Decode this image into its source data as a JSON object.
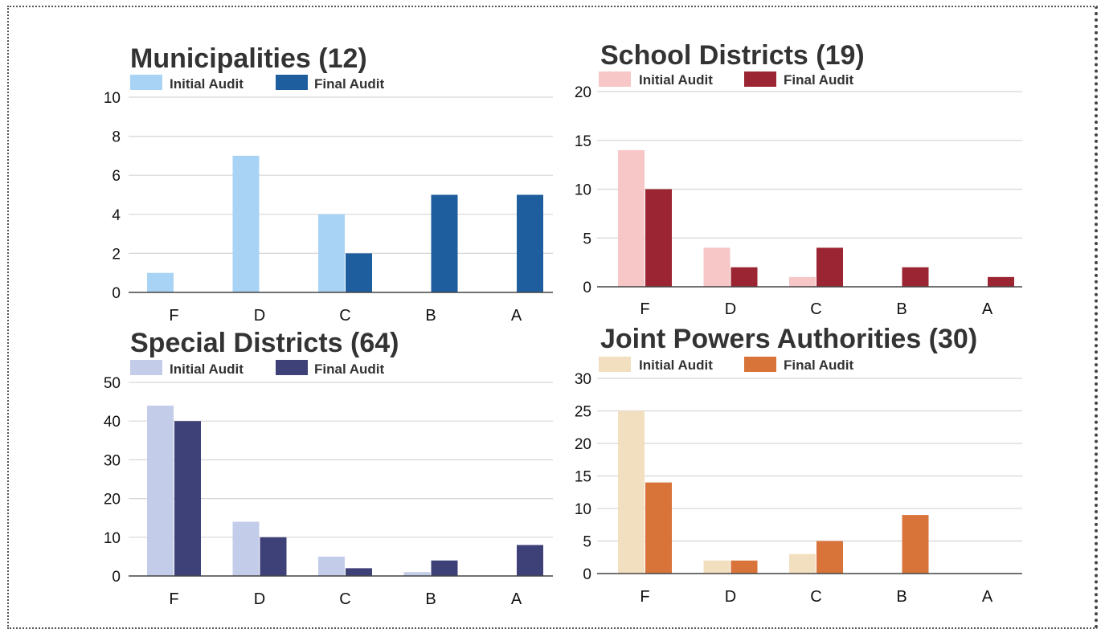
{
  "chart_data": [
    {
      "type": "bar",
      "title": "Municipalities (12)",
      "categories": [
        "F",
        "D",
        "C",
        "B",
        "A"
      ],
      "series": [
        {
          "name": "Initial Audit",
          "values": [
            1,
            7,
            4,
            0,
            0
          ],
          "color": "#a9d3f5"
        },
        {
          "name": "Final Audit",
          "values": [
            0,
            0,
            2,
            5,
            5
          ],
          "color": "#1e5e9e"
        }
      ],
      "yticks": [
        0,
        2,
        4,
        6,
        8,
        10
      ],
      "ylim": [
        0,
        10
      ],
      "grid": true,
      "legend": "top-left"
    },
    {
      "type": "bar",
      "title": "School Districts (19)",
      "categories": [
        "F",
        "D",
        "C",
        "B",
        "A"
      ],
      "series": [
        {
          "name": "Initial Audit",
          "values": [
            14,
            4,
            1,
            0,
            0
          ],
          "color": "#f7c6c6"
        },
        {
          "name": "Final Audit",
          "values": [
            10,
            2,
            4,
            2,
            1
          ],
          "color": "#9b2532"
        }
      ],
      "yticks": [
        0,
        5,
        10,
        15,
        20
      ],
      "ylim": [
        0,
        20
      ],
      "grid": true,
      "legend": "top-left"
    },
    {
      "type": "bar",
      "title": "Special Districts (64)",
      "categories": [
        "F",
        "D",
        "C",
        "B",
        "A"
      ],
      "series": [
        {
          "name": "Initial Audit",
          "values": [
            44,
            14,
            5,
            1,
            0
          ],
          "color": "#c3cde9"
        },
        {
          "name": "Final Audit",
          "values": [
            40,
            10,
            2,
            4,
            8
          ],
          "color": "#3d4178"
        }
      ],
      "yticks": [
        0,
        10,
        20,
        30,
        40,
        50
      ],
      "ylim": [
        0,
        50
      ],
      "grid": true,
      "legend": "top-left"
    },
    {
      "type": "bar",
      "title": "Joint Powers Authorities (30)",
      "categories": [
        "F",
        "D",
        "C",
        "B",
        "A"
      ],
      "series": [
        {
          "name": "Initial Audit",
          "values": [
            25,
            2,
            3,
            0,
            0
          ],
          "color": "#f2dfc0"
        },
        {
          "name": "Final Audit",
          "values": [
            14,
            2,
            5,
            9,
            0
          ],
          "color": "#d8733a"
        }
      ],
      "yticks": [
        0,
        5,
        10,
        15,
        20,
        25,
        30
      ],
      "ylim": [
        0,
        30
      ],
      "grid": true,
      "legend": "top-left"
    }
  ]
}
